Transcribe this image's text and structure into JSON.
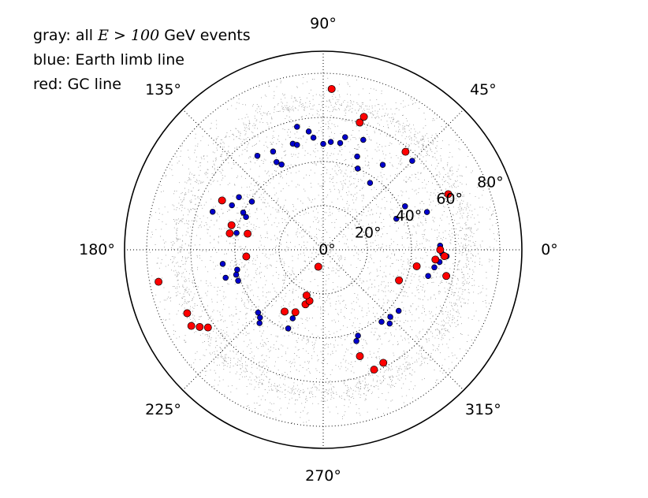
{
  "legend": {
    "gray_prefix": "gray: all ",
    "gray_var": "E",
    "gray_op": " > ",
    "gray_val": "100",
    "gray_suffix": " GeV events",
    "blue": "blue: Earth limb line",
    "red": "red: GC line"
  },
  "chart_data": {
    "type": "scatter",
    "projection": "polar",
    "title": "",
    "angle_unit": "degrees",
    "r_max": 90,
    "angular_tick_labels": [
      {
        "theta": 0,
        "label": "0°"
      },
      {
        "theta": 45,
        "label": "45°"
      },
      {
        "theta": 90,
        "label": "90°"
      },
      {
        "theta": 135,
        "label": "135°"
      },
      {
        "theta": 180,
        "label": "180°"
      },
      {
        "theta": 225,
        "label": "225°"
      },
      {
        "theta": 270,
        "label": "270°"
      },
      {
        "theta": 315,
        "label": "315°"
      }
    ],
    "radial_tick_labels": [
      {
        "r": 0,
        "label": "0°"
      },
      {
        "r": 20,
        "label": "20°"
      },
      {
        "r": 40,
        "label": "40°"
      },
      {
        "r": 60,
        "label": "60°"
      },
      {
        "r": 80,
        "label": "80°"
      }
    ],
    "grid": true,
    "background_points": {
      "color": "#999999",
      "count": 6000,
      "distribution": "uniform in r below 60°, dense ring near 68–72°, sparser to 80°"
    },
    "series": [
      {
        "color": "#0000cc",
        "points": [
          [
            97,
            54
          ],
          [
            79,
            52
          ],
          [
            90,
            48
          ],
          [
            95,
            51
          ],
          [
            86,
            49
          ],
          [
            81,
            49
          ],
          [
            70,
            53
          ],
          [
            55,
            47
          ],
          [
            45,
            57
          ],
          [
            67,
            40
          ],
          [
            55,
            37
          ],
          [
            125,
            52
          ],
          [
            117,
            50
          ],
          [
            118,
            45
          ],
          [
            116,
            43
          ],
          [
            106,
            50
          ],
          [
            102,
            57
          ],
          [
            104,
            49
          ],
          [
            148,
            45
          ],
          [
            146,
            39
          ],
          [
            154,
            46
          ],
          [
            161,
            53
          ],
          [
            155,
            40
          ],
          [
            169,
            40
          ],
          [
            157,
            38
          ],
          [
            188,
            46
          ],
          [
            196,
            41
          ],
          [
            193,
            40
          ],
          [
            196,
            46
          ],
          [
            200,
            41
          ],
          [
            224,
            41
          ],
          [
            227,
            42
          ],
          [
            229,
            44
          ],
          [
            246,
            34
          ],
          [
            246,
            39
          ],
          [
            290,
            44
          ],
          [
            292,
            42
          ],
          [
            309,
            42
          ],
          [
            315,
            43
          ],
          [
            312,
            45
          ],
          [
            321,
            44
          ],
          [
            346,
            49
          ],
          [
            351,
            51
          ],
          [
            354,
            53
          ],
          [
            358,
            54
          ],
          [
            357,
            56
          ],
          [
            2,
            53
          ],
          [
            20,
            50
          ],
          [
            28,
            42
          ],
          [
            23,
            36
          ],
          [
            70,
            45
          ]
        ]
      },
      {
        "color": "#ff0000",
        "points": [
          [
            87,
            73
          ],
          [
            74,
            60
          ],
          [
            73,
            63
          ],
          [
            50,
            58
          ],
          [
            24,
            62
          ],
          [
            154,
            51
          ],
          [
            165,
            43
          ],
          [
            170,
            43
          ],
          [
            168,
            35
          ],
          [
            185,
            35
          ],
          [
            191,
            76
          ],
          [
            205,
            68
          ],
          [
            210,
            69
          ],
          [
            212,
            66
          ],
          [
            214,
            63
          ],
          [
            252,
            26
          ],
          [
            255,
            24
          ],
          [
            250,
            22
          ],
          [
            246,
            31
          ],
          [
            238,
            33
          ],
          [
            289,
            51
          ],
          [
            293,
            59
          ],
          [
            298,
            58
          ],
          [
            355,
            51
          ],
          [
            357,
            55
          ],
          [
            0,
            53
          ],
          [
            348,
            57
          ],
          [
            350,
            43
          ],
          [
            338,
            37
          ],
          [
            254,
            8
          ]
        ]
      }
    ]
  }
}
